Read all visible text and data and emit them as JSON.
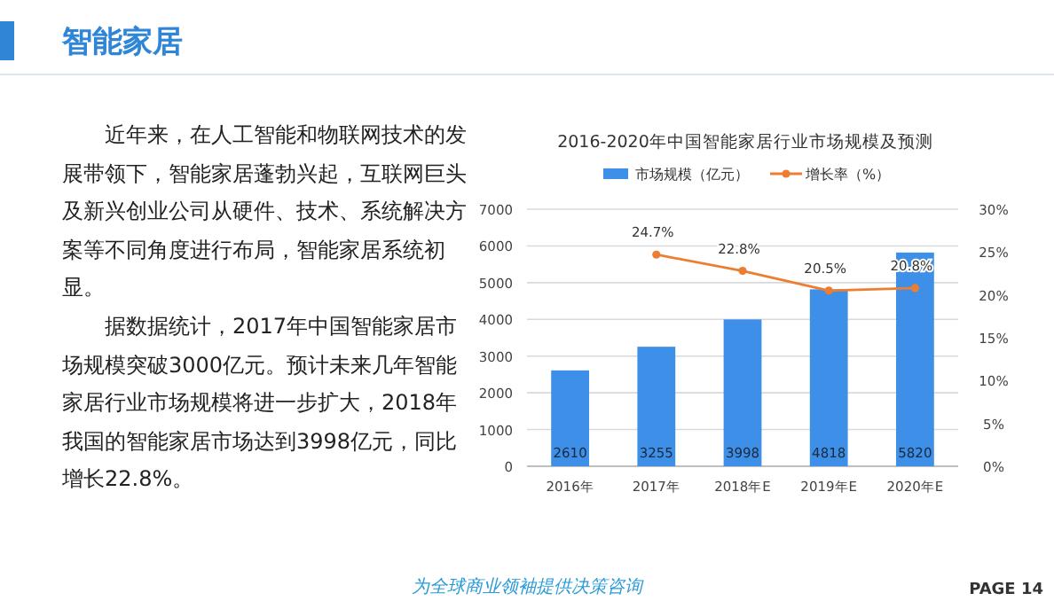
{
  "chart_data": {
    "type": "bar",
    "title": "2016-2020年中国智能家居行业市场规模及预测",
    "categories": [
      "2016年",
      "2017年",
      "2018年E",
      "2019年E",
      "2020年E"
    ],
    "series": [
      {
        "name": "市场规模（亿元）",
        "color": "#3d8fe8",
        "values": [
          2610,
          3255,
          3998,
          4818,
          5820
        ],
        "value_labels": [
          "2610",
          "3255",
          "3998",
          "4818",
          "5820"
        ]
      },
      {
        "name": "增长率（%）",
        "type": "line",
        "axis": "y2",
        "color": "#ed7d31",
        "marker": "circle",
        "values": [
          null,
          24.7,
          22.8,
          20.5,
          20.8
        ],
        "value_labels": [
          null,
          "24.7%",
          "22.8%",
          "20.5%",
          "20.8%"
        ]
      }
    ],
    "ylim": [
      0,
      7000
    ],
    "yticks": [
      0,
      1000,
      2000,
      3000,
      4000,
      5000,
      6000,
      7000
    ],
    "y2lim": [
      0,
      30
    ],
    "y2ticks": [
      {
        "value": 0,
        "label": "0%"
      },
      {
        "value": 5,
        "label": "5%"
      },
      {
        "value": 10,
        "label": "10%"
      },
      {
        "value": 15,
        "label": "15%"
      },
      {
        "value": 20,
        "label": "20%"
      },
      {
        "value": 25,
        "label": "25%"
      },
      {
        "value": 30,
        "label": "30%"
      }
    ],
    "grid": "y",
    "legend": "top",
    "annotations": [
      "智能家居",
      "近年来，在人工智能和物联网技术的发展带领下，智能家居蓬勃兴起，互联网巨头及新兴创业公司从硬件、技术、系统解决方案等不同角度进行布局，智能家居系统初显。",
      "据数据统计，2017年中国智能家居市场规模突破3000亿元。预计未来几年智能家居行业市场规模将进一步扩大，2018年我国的智能家居市场达到3998亿元，同比增长22.8%。",
      "为全球商业领袖提供决策咨询",
      "PAGE 14"
    ]
  }
}
